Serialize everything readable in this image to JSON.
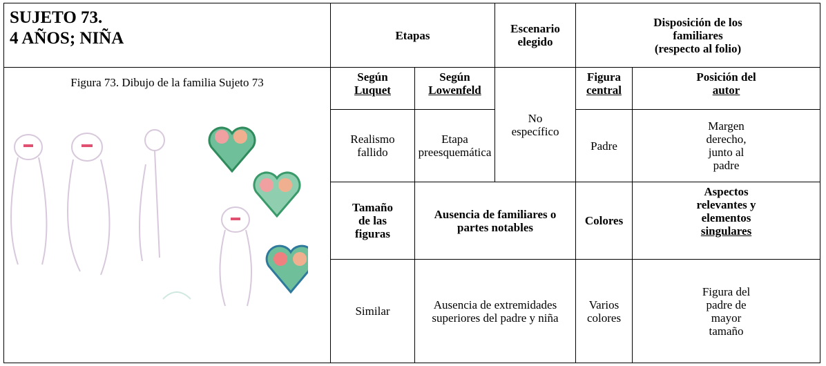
{
  "subject": {
    "title_lines": [
      "SUJETO 73.",
      "4 AÑOS; NIÑA"
    ]
  },
  "figure": {
    "caption": "Figura 73. Dibujo de la familia Sujeto 73"
  },
  "table": {
    "etapas": "Etapas",
    "escenario": [
      "Escenario",
      "elegido"
    ],
    "disposicion": [
      "Disposición de los",
      "familiares",
      "(respecto al folio)"
    ],
    "luquet_header": [
      "Según",
      "Luquet"
    ],
    "lowenfeld_header": [
      "Según",
      "Lowenfeld"
    ],
    "escenario_value": [
      "No",
      "específico"
    ],
    "figura_central_header": [
      "Figura",
      "central"
    ],
    "posicion_header": [
      "Posición del",
      "autor"
    ],
    "luquet_value": [
      "Realismo",
      "fallido"
    ],
    "lowenfeld_value": [
      "Etapa",
      "preesquemática"
    ],
    "figura_central_value": "Padre",
    "posicion_value": [
      "Margen",
      "derecho,",
      "junto al",
      "padre"
    ],
    "tamano_header": [
      "Tamaño",
      "de las",
      "figuras"
    ],
    "ausencia_header": [
      "Ausencia de familiares o",
      "partes notables"
    ],
    "colores_header": "Colores",
    "aspectos_header": [
      "Aspectos",
      "relevantes y",
      "elementos",
      "singulares"
    ],
    "tamano_value": "Similar",
    "ausencia_value": [
      "Ausencia de extremidades",
      "superiores del padre y niña"
    ],
    "colores_value": [
      "Varios",
      "colores"
    ],
    "aspectos_value": [
      "Figura del",
      "padre de",
      "mayor",
      "tamaño"
    ]
  }
}
